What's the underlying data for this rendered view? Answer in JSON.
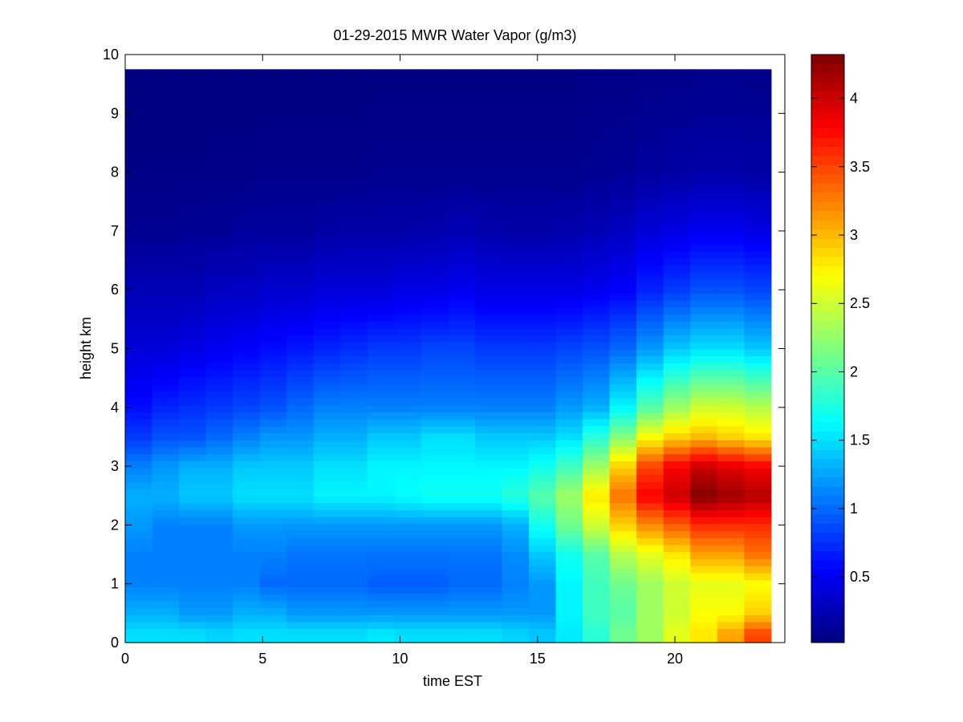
{
  "chart_data": {
    "type": "heatmap",
    "title": "01-29-2015 MWR Water Vapor (g/m3)",
    "xlabel": "time EST",
    "ylabel": "height km",
    "xlim": [
      0,
      24
    ],
    "ylim": [
      0,
      10
    ],
    "xticks": [
      "0",
      "5",
      "10",
      "15",
      "20"
    ],
    "yticks": [
      "0",
      "1",
      "2",
      "3",
      "4",
      "5",
      "6",
      "7",
      "8",
      "9",
      "10"
    ],
    "colorbar": {
      "colormap": "jet",
      "range": [
        0.02,
        4.32
      ],
      "ticks": [
        "0.5",
        "1",
        "1.5",
        "2",
        "2.5",
        "3",
        "3.5",
        "4"
      ]
    },
    "x": [
      0,
      1,
      2,
      3,
      4,
      5,
      6,
      7,
      8,
      9,
      10,
      11,
      12,
      13,
      14,
      15,
      16,
      17,
      18,
      19,
      20,
      21,
      22,
      23
    ],
    "z_ref_heights_km": [
      0.15,
      0.5,
      1.0,
      1.5,
      2.0,
      2.5,
      3.0,
      3.5,
      4.0,
      5.0,
      6.0,
      7.0,
      8.0,
      9.7
    ],
    "z_values": [
      [
        1.5,
        1.5,
        1.5,
        1.45,
        1.5,
        1.5,
        1.5,
        1.5,
        1.5,
        1.55,
        1.5,
        1.5,
        1.5,
        1.5,
        1.45,
        1.4,
        1.55,
        1.8,
        2.1,
        2.3,
        2.6,
        2.8,
        3.1,
        3.5
      ],
      [
        1.3,
        1.3,
        1.2,
        1.2,
        1.3,
        1.3,
        1.2,
        1.2,
        1.2,
        1.2,
        1.2,
        1.2,
        1.2,
        1.2,
        1.2,
        1.2,
        1.6,
        1.9,
        2.0,
        2.3,
        2.5,
        2.7,
        2.7,
        2.9
      ],
      [
        1.1,
        1.1,
        1.1,
        1.1,
        1.1,
        1.0,
        1.0,
        1.0,
        1.0,
        0.95,
        0.95,
        0.95,
        1.0,
        1.0,
        1.1,
        1.2,
        1.6,
        1.9,
        2.1,
        2.3,
        2.5,
        2.6,
        2.6,
        2.7
      ],
      [
        1.1,
        1.1,
        1.1,
        1.1,
        1.1,
        1.1,
        1.05,
        1.05,
        1.05,
        1.05,
        1.05,
        1.05,
        1.05,
        1.05,
        1.15,
        1.4,
        1.7,
        2.0,
        2.4,
        2.6,
        2.8,
        3.1,
        3.1,
        3.3
      ],
      [
        1.2,
        1.1,
        1.1,
        1.1,
        1.2,
        1.2,
        1.2,
        1.2,
        1.2,
        1.2,
        1.2,
        1.2,
        1.2,
        1.2,
        1.3,
        1.7,
        2.1,
        2.5,
        2.9,
        3.2,
        3.4,
        3.6,
        3.6,
        3.6
      ],
      [
        1.3,
        1.3,
        1.4,
        1.4,
        1.5,
        1.5,
        1.5,
        1.6,
        1.6,
        1.6,
        1.65,
        1.7,
        1.7,
        1.7,
        1.8,
        2.0,
        2.3,
        2.8,
        3.3,
        3.8,
        4.0,
        4.3,
        4.2,
        4.1
      ],
      [
        1.1,
        1.2,
        1.3,
        1.3,
        1.4,
        1.4,
        1.4,
        1.5,
        1.5,
        1.6,
        1.6,
        1.6,
        1.6,
        1.6,
        1.6,
        1.7,
        1.9,
        2.3,
        2.9,
        3.5,
        3.8,
        4.0,
        3.9,
        3.8
      ],
      [
        0.8,
        0.9,
        0.9,
        1.0,
        1.1,
        1.2,
        1.2,
        1.3,
        1.3,
        1.4,
        1.4,
        1.5,
        1.5,
        1.4,
        1.4,
        1.4,
        1.5,
        1.8,
        2.2,
        2.7,
        2.9,
        3.0,
        2.9,
        2.8
      ],
      [
        0.6,
        0.7,
        0.75,
        0.8,
        0.85,
        0.9,
        1.0,
        1.1,
        1.1,
        1.1,
        1.1,
        1.1,
        1.1,
        1.1,
        1.1,
        1.1,
        1.2,
        1.3,
        1.6,
        2.0,
        2.3,
        2.5,
        2.5,
        2.4
      ],
      [
        0.4,
        0.4,
        0.45,
        0.5,
        0.55,
        0.6,
        0.65,
        0.7,
        0.75,
        0.8,
        0.8,
        0.85,
        0.85,
        0.8,
        0.8,
        0.8,
        0.85,
        0.9,
        1.0,
        1.2,
        1.4,
        1.5,
        1.5,
        1.4
      ],
      [
        0.25,
        0.25,
        0.25,
        0.3,
        0.3,
        0.35,
        0.35,
        0.4,
        0.4,
        0.4,
        0.45,
        0.45,
        0.5,
        0.45,
        0.45,
        0.45,
        0.45,
        0.5,
        0.55,
        0.7,
        0.8,
        0.9,
        0.9,
        0.85
      ],
      [
        0.1,
        0.1,
        0.12,
        0.12,
        0.15,
        0.15,
        0.15,
        0.18,
        0.2,
        0.2,
        0.2,
        0.22,
        0.25,
        0.22,
        0.2,
        0.2,
        0.22,
        0.25,
        0.3,
        0.4,
        0.45,
        0.5,
        0.5,
        0.45
      ],
      [
        0.05,
        0.05,
        0.05,
        0.06,
        0.06,
        0.07,
        0.07,
        0.07,
        0.07,
        0.08,
        0.08,
        0.08,
        0.08,
        0.08,
        0.08,
        0.08,
        0.08,
        0.1,
        0.12,
        0.15,
        0.18,
        0.2,
        0.2,
        0.18
      ],
      [
        0.03,
        0.03,
        0.03,
        0.03,
        0.03,
        0.03,
        0.03,
        0.03,
        0.03,
        0.04,
        0.04,
        0.04,
        0.04,
        0.04,
        0.04,
        0.04,
        0.04,
        0.05,
        0.05,
        0.06,
        0.06,
        0.07,
        0.07,
        0.07
      ]
    ],
    "data_ymax_km": 9.75,
    "legend": "none",
    "grid": false
  }
}
